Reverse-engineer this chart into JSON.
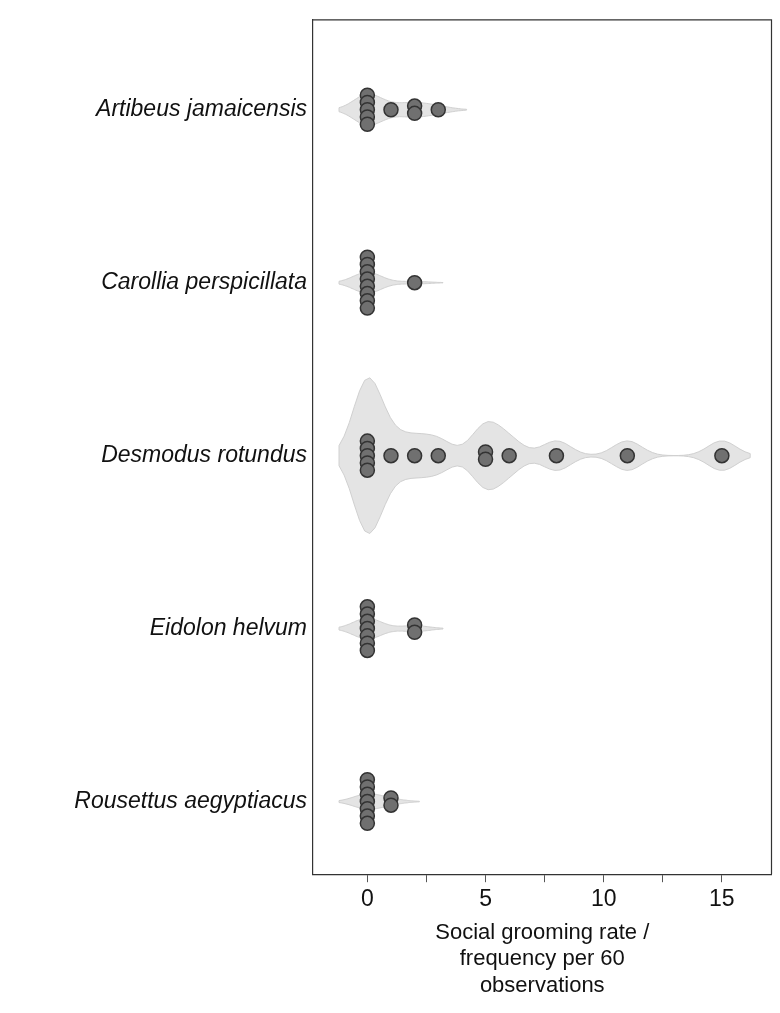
{
  "chart_data": {
    "type": "scatter",
    "orientation": "horizontal",
    "xlabel": "Social grooming rate / frequency per 60 observations",
    "categories": [
      "Artibeus jamaicensis",
      "Carollia perspicillata",
      "Desmodus rotundus",
      "Eidolon helvum",
      "Rousettus aegyptiacus"
    ],
    "xlim": [
      -2.3,
      17.1
    ],
    "xticks": [
      0,
      {
        "value": 2.5,
        "label": null
      },
      5,
      {
        "value": 7.5,
        "label": null
      },
      10,
      {
        "value": 12.5,
        "label": null
      },
      15
    ],
    "series": [
      {
        "color": "#707070",
        "x": [
          "Artibeus jamaicensis",
          "Artibeus jamaicensis",
          "Artibeus jamaicensis",
          "Artibeus jamaicensis",
          "Artibeus jamaicensis",
          "Artibeus jamaicensis",
          "Artibeus jamaicensis",
          "Artibeus jamaicensis",
          "Artibeus jamaicensis",
          "Carollia perspicillata",
          "Carollia perspicillata",
          "Carollia perspicillata",
          "Carollia perspicillata",
          "Carollia perspicillata",
          "Carollia perspicillata",
          "Carollia perspicillata",
          "Carollia perspicillata",
          "Carollia perspicillata",
          "Desmodus rotundus",
          "Desmodus rotundus",
          "Desmodus rotundus",
          "Desmodus rotundus",
          "Desmodus rotundus",
          "Desmodus rotundus",
          "Desmodus rotundus",
          "Desmodus rotundus",
          "Desmodus rotundus",
          "Desmodus rotundus",
          "Desmodus rotundus",
          "Desmodus rotundus",
          "Desmodus rotundus",
          "Desmodus rotundus",
          "Eidolon helvum",
          "Eidolon helvum",
          "Eidolon helvum",
          "Eidolon helvum",
          "Eidolon helvum",
          "Eidolon helvum",
          "Eidolon helvum",
          "Eidolon helvum",
          "Eidolon helvum",
          "Rousettus aegyptiacus",
          "Rousettus aegyptiacus",
          "Rousettus aegyptiacus",
          "Rousettus aegyptiacus",
          "Rousettus aegyptiacus",
          "Rousettus aegyptiacus",
          "Rousettus aegyptiacus",
          "Rousettus aegyptiacus",
          "Rousettus aegyptiacus"
        ],
        "values": [
          0,
          0,
          0,
          0,
          0,
          2,
          2,
          3,
          1,
          0,
          0,
          0,
          0,
          0,
          0,
          0,
          0,
          2,
          0,
          0,
          0,
          0,
          0,
          1,
          2,
          3,
          5,
          5,
          6,
          8,
          11,
          15,
          0,
          0,
          0,
          0,
          0,
          0,
          0,
          2,
          2,
          0,
          0,
          0,
          0,
          0,
          0,
          0,
          1,
          1
        ]
      }
    ],
    "marker": "circle",
    "grid": false,
    "legend": false
  }
}
